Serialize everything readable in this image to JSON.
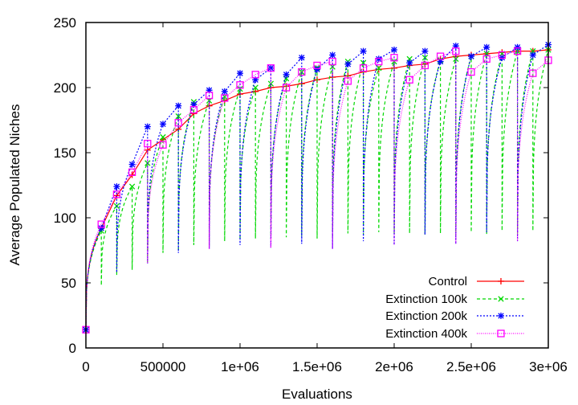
{
  "chart_data": {
    "type": "line",
    "title": "",
    "xlabel": "Evaluations",
    "ylabel": "Average Populated Niches",
    "xlim": [
      0,
      3000000
    ],
    "ylim": [
      0,
      250
    ],
    "grid": false,
    "legend_position": "bottom-right",
    "x_tick_labels": [
      "0",
      "500000",
      "1e+06",
      "1.5e+06",
      "2e+06",
      "2.5e+06",
      "3e+06"
    ],
    "x_tick_values": [
      0,
      500000,
      1000000,
      1500000,
      2000000,
      2500000,
      3000000
    ],
    "y_tick_labels": [
      "0",
      "50",
      "100",
      "150",
      "200",
      "250"
    ],
    "y_tick_values": [
      0,
      50,
      100,
      150,
      200,
      250
    ],
    "x": [
      0,
      100000,
      200000,
      300000,
      400000,
      500000,
      600000,
      700000,
      800000,
      900000,
      1000000,
      1100000,
      1200000,
      1300000,
      1400000,
      1500000,
      1600000,
      1700000,
      1800000,
      1900000,
      2000000,
      2100000,
      2200000,
      2300000,
      2400000,
      2500000,
      2600000,
      2700000,
      2800000,
      2900000,
      3000000
    ],
    "series": [
      {
        "name": "Control",
        "color": "#ff0000",
        "marker": "plus",
        "dash": "solid",
        "extinction_interval": null,
        "values": [
          14,
          92,
          117,
          133,
          152,
          160,
          168,
          180,
          186,
          190,
          195,
          197,
          200,
          201,
          203,
          206,
          208,
          209,
          212,
          214,
          215,
          217,
          218,
          222,
          224,
          225,
          226,
          227,
          228,
          228,
          229
        ],
        "troughs": []
      },
      {
        "name": "Extinction 100k",
        "color": "#00d800",
        "marker": "cross",
        "dash": "dashed",
        "extinction_interval": 100000,
        "values": [
          14,
          90,
          109,
          124,
          142,
          162,
          178,
          189,
          190,
          193,
          199,
          200,
          203,
          207,
          212,
          215,
          216,
          220,
          219,
          215,
          220,
          222,
          223,
          221,
          222,
          224,
          226,
          226,
          228,
          228,
          229
        ],
        "troughs": [
          48,
          56,
          60,
          65,
          73,
          74,
          79,
          78,
          82,
          83,
          84,
          84,
          85,
          86,
          84,
          86,
          88,
          87,
          89,
          88,
          88,
          87,
          88,
          86,
          89,
          87,
          90,
          88,
          90
        ]
      },
      {
        "name": "Extinction 200k",
        "color": "#0000ff",
        "marker": "star",
        "dash": "dotted",
        "extinction_interval": 200000,
        "values": [
          14,
          92,
          124,
          141,
          170,
          172,
          186,
          187,
          198,
          197,
          211,
          206,
          215,
          210,
          223,
          214,
          225,
          218,
          228,
          222,
          229,
          219,
          228,
          220,
          232,
          224,
          231,
          223,
          231,
          225,
          233
        ],
        "troughs": [
          58,
          65,
          73,
          76,
          79,
          77,
          80,
          76,
          82,
          79,
          87,
          80,
          89,
          82
        ]
      },
      {
        "name": "Extinction 400k",
        "color": "#ff00ff",
        "marker": "square",
        "dash": "fine-dotted",
        "extinction_interval": 400000,
        "values": [
          14,
          95,
          118,
          135,
          157,
          156,
          173,
          183,
          194,
          192,
          202,
          210,
          215,
          200,
          212,
          217,
          220,
          205,
          215,
          220,
          223,
          206,
          217,
          224,
          228,
          212,
          222,
          225,
          228,
          211,
          221
        ],
        "troughs": [
          65,
          76,
          77,
          76,
          79,
          80,
          82
        ]
      }
    ]
  }
}
